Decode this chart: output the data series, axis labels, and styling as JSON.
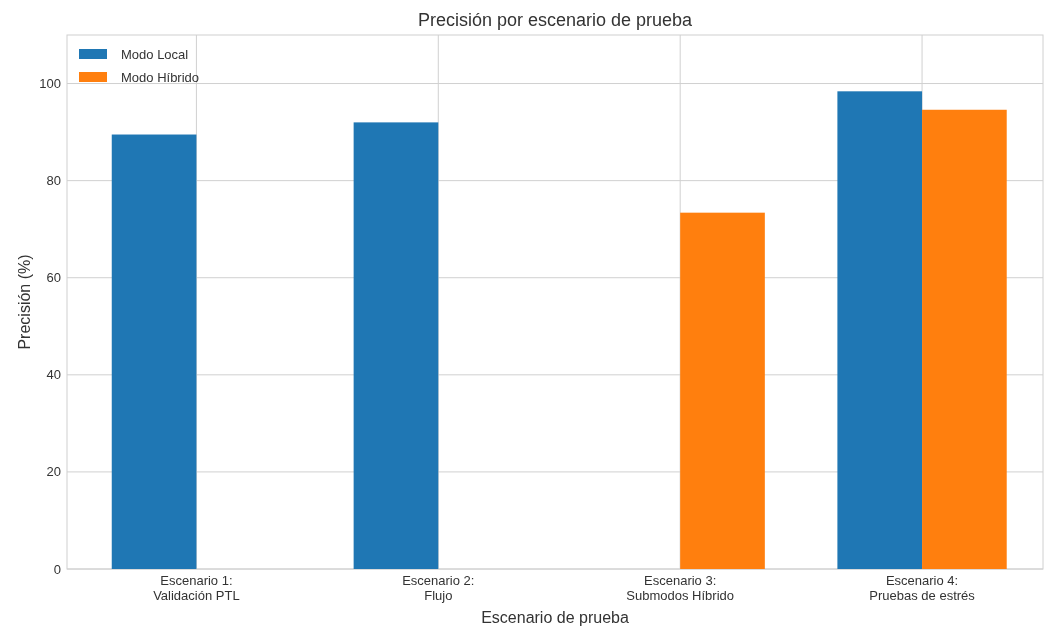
{
  "chart_data": {
    "type": "bar",
    "title": "Precisión por escenario de prueba",
    "xlabel": "Escenario de prueba",
    "ylabel": "Precisión (%)",
    "categories": [
      "Escenario 1:\nValidación PTL",
      "Escenario 2:\nFlujo",
      "Escenario 3:\nSubmodos Híbrido",
      "Escenario 4:\nPruebas de estrés"
    ],
    "series": [
      {
        "name": "Modo Local",
        "color": "#1f77b4",
        "values": [
          89.5,
          92.0,
          null,
          98.4
        ]
      },
      {
        "name": "Modo Híbrido",
        "color": "#ff7f0e",
        "values": [
          null,
          null,
          73.4,
          94.6
        ]
      }
    ],
    "ylim": [
      0,
      110
    ],
    "yticks": [
      0,
      20,
      40,
      60,
      80,
      100
    ],
    "grid": true,
    "legend": "top left"
  }
}
